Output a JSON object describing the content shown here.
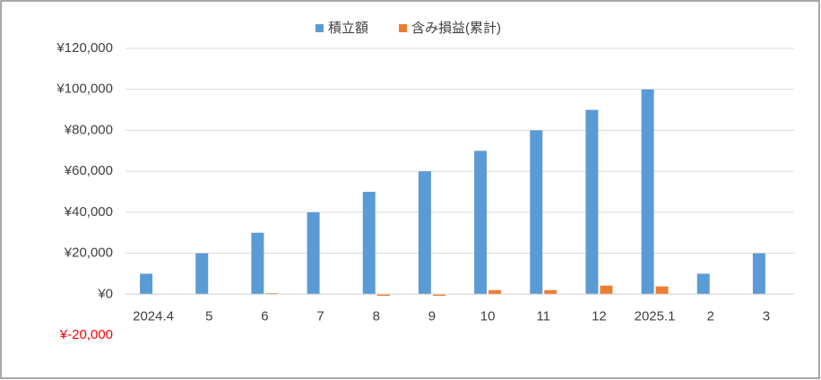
{
  "chart_data": {
    "type": "bar",
    "categories": [
      "2024.4",
      "5",
      "6",
      "7",
      "8",
      "9",
      "10",
      "11",
      "12",
      "2025.1",
      "2",
      "3"
    ],
    "series": [
      {
        "name": "積立額",
        "color": "#5b9bd5",
        "values": [
          10000,
          20000,
          30000,
          40000,
          50000,
          60000,
          70000,
          80000,
          90000,
          100000,
          10000,
          20000
        ]
      },
      {
        "name": "含み損益(累計)",
        "color": "#ed7d31",
        "values": [
          0,
          0,
          500,
          0,
          -800,
          -800,
          2000,
          2000,
          4200,
          3800,
          0,
          0
        ]
      }
    ],
    "ylim": [
      -20000,
      120000
    ],
    "yticks": [
      {
        "value": -20000,
        "label": "¥-20,000"
      },
      {
        "value": 0,
        "label": "¥0"
      },
      {
        "value": 20000,
        "label": "¥20,000"
      },
      {
        "value": 40000,
        "label": "¥40,000"
      },
      {
        "value": 60000,
        "label": "¥60,000"
      },
      {
        "value": 80000,
        "label": "¥80,000"
      },
      {
        "value": 100000,
        "label": "¥100,000"
      },
      {
        "value": 120000,
        "label": "¥120,000"
      }
    ],
    "negative_label_color": "#ff0000",
    "grid": true,
    "legend": "top"
  }
}
